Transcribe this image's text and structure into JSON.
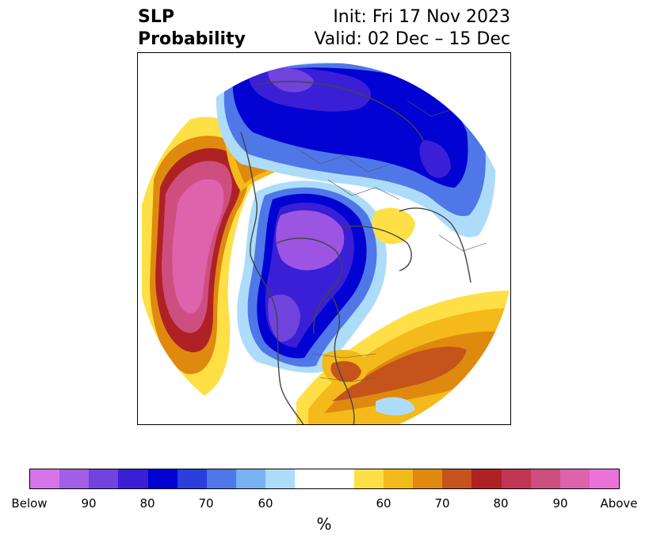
{
  "title": {
    "left_line1": "SLP",
    "left_line2": "Probability",
    "right_line1": "Init: Fri 17 Nov 2023",
    "right_line2": "Valid: 02 Dec – 15 Dec"
  },
  "colorbar": {
    "colors": [
      "#d874ea",
      "#a25ee6",
      "#7043dc",
      "#3a1fd6",
      "#0202d2",
      "#2a3fdd",
      "#4f77e8",
      "#79b2f2",
      "#addcfa",
      "#ffffff",
      "#ffffff",
      "#fee046",
      "#f4b91a",
      "#df8a0f",
      "#c5541c",
      "#ae2224",
      "#c13653",
      "#cf4e80",
      "#de62ac",
      "#ea72d8"
    ],
    "labels": [
      "Below",
      "90",
      "80",
      "70",
      "60",
      "60",
      "70",
      "80",
      "90",
      "Above"
    ],
    "unit": "%"
  },
  "map": {
    "description_colors": {
      "below_strong": "#9c55e2",
      "below_mid": "#0202d2",
      "below_weak": "#79b2f2",
      "above_weak": "#fee046",
      "above_mid": "#df8a0f",
      "above_strong": "#c5541c",
      "above_vstrong": "#c13653",
      "above_max": "#de62ac"
    }
  }
}
